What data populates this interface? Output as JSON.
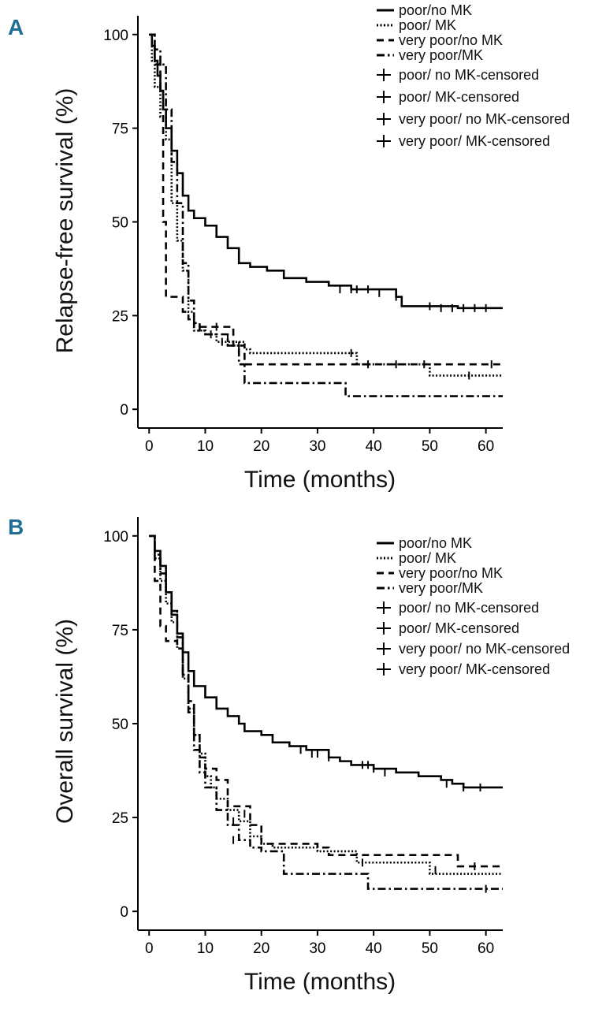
{
  "chart_data": [
    {
      "type": "line",
      "panel_label": "A",
      "xlabel": "Time (months)",
      "ylabel": "Relapse-free survival (%)",
      "xlim": [
        -2,
        63
      ],
      "ylim": [
        -5,
        105
      ],
      "xticks": [
        0,
        10,
        20,
        30,
        40,
        50,
        60
      ],
      "yticks": [
        0,
        25,
        50,
        75,
        100
      ],
      "legend_position": "top-right",
      "legend": [
        "poor/no MK",
        "poor/ MK",
        "very poor/no MK",
        "very poor/MK",
        "poor/ no MK-censored",
        "poor/ MK-censored",
        "very poor/ no MK-censored",
        "very poor/ MK-censored"
      ],
      "series": [
        {
          "name": "poor/no MK",
          "style": "solid",
          "points": [
            [
              0,
              100
            ],
            [
              0.5,
              97
            ],
            [
              1,
              93
            ],
            [
              1.5,
              89
            ],
            [
              2,
              85
            ],
            [
              2.5,
              80
            ],
            [
              3,
              75
            ],
            [
              4,
              69
            ],
            [
              5,
              63
            ],
            [
              6,
              57
            ],
            [
              7,
              53
            ],
            [
              8,
              51
            ],
            [
              10,
              49
            ],
            [
              12,
              46
            ],
            [
              14,
              43
            ],
            [
              16,
              39
            ],
            [
              18,
              38
            ],
            [
              21,
              37
            ],
            [
              24,
              35
            ],
            [
              28,
              34
            ],
            [
              32,
              33
            ],
            [
              36,
              32
            ],
            [
              40,
              32
            ],
            [
              44,
              30
            ],
            [
              45,
              27.5
            ],
            [
              50,
              27.5
            ],
            [
              55,
              27
            ],
            [
              63,
              27
            ]
          ],
          "censored": [
            [
              34,
              32
            ],
            [
              36,
              32
            ],
            [
              37,
              32
            ],
            [
              39,
              32
            ],
            [
              41,
              31
            ],
            [
              44,
              30
            ],
            [
              50,
              27.5
            ],
            [
              52,
              27
            ],
            [
              54,
              27
            ],
            [
              56,
              27
            ],
            [
              58,
              27
            ],
            [
              60,
              27
            ]
          ]
        },
        {
          "name": "poor/ MK",
          "style": "dotted",
          "points": [
            [
              0,
              100
            ],
            [
              0.5,
              93
            ],
            [
              1,
              86
            ],
            [
              2,
              78
            ],
            [
              3,
              72
            ],
            [
              4,
              55
            ],
            [
              5,
              45
            ],
            [
              6,
              37
            ],
            [
              7,
              26
            ],
            [
              8,
              21
            ],
            [
              10,
              20
            ],
            [
              12,
              18
            ],
            [
              14,
              18
            ],
            [
              17,
              16
            ],
            [
              18,
              15
            ],
            [
              20,
              15
            ],
            [
              37,
              15
            ],
            [
              37,
              12
            ],
            [
              49,
              12
            ],
            [
              50,
              9
            ],
            [
              63,
              9
            ]
          ],
          "censored": [
            [
              11,
              20
            ],
            [
              13,
              18
            ],
            [
              36,
              15
            ],
            [
              39,
              12
            ],
            [
              44,
              12
            ],
            [
              57,
              9
            ]
          ]
        },
        {
          "name": "very poor/no MK",
          "style": "dashed",
          "points": [
            [
              0,
              100
            ],
            [
              1,
              92
            ],
            [
              2,
              85
            ],
            [
              2.5,
              50
            ],
            [
              3,
              30
            ],
            [
              4,
              30
            ],
            [
              5,
              30
            ],
            [
              6,
              26
            ],
            [
              7,
              24
            ],
            [
              8,
              22
            ],
            [
              9,
              22
            ],
            [
              13,
              22
            ],
            [
              15,
              17
            ],
            [
              17,
              15
            ],
            [
              17,
              12
            ],
            [
              37,
              12
            ],
            [
              50,
              12
            ],
            [
              63,
              12
            ]
          ],
          "censored": [
            [
              12,
              22
            ],
            [
              14,
              19
            ],
            [
              16,
              17
            ],
            [
              49,
              12
            ],
            [
              61,
              12
            ]
          ]
        },
        {
          "name": "very poor/MK",
          "style": "dashdot",
          "points": [
            [
              0,
              100
            ],
            [
              1,
              96
            ],
            [
              2,
              92
            ],
            [
              3,
              80
            ],
            [
              4,
              66
            ],
            [
              5,
              55
            ],
            [
              6,
              39
            ],
            [
              7,
              29
            ],
            [
              8,
              23
            ],
            [
              9,
              21
            ],
            [
              10,
              20
            ],
            [
              14,
              17
            ],
            [
              16,
              12
            ],
            [
              17,
              7
            ],
            [
              20,
              7
            ],
            [
              34,
              7
            ],
            [
              35,
              3.5
            ],
            [
              63,
              3.5
            ]
          ],
          "censored": []
        }
      ]
    },
    {
      "type": "line",
      "panel_label": "B",
      "xlabel": "Time (months)",
      "ylabel": "Overall survival (%)",
      "xlim": [
        -2,
        63
      ],
      "ylim": [
        -5,
        105
      ],
      "xticks": [
        0,
        10,
        20,
        30,
        40,
        50,
        60
      ],
      "yticks": [
        0,
        25,
        50,
        75,
        100
      ],
      "legend_position": "top-right",
      "legend": [
        "poor/no MK",
        "poor/ MK",
        "very poor/no MK",
        "very poor/MK",
        "poor/ no MK-censored",
        "poor/ MK-censored",
        "very poor/ no MK-censored",
        "very poor/ MK-censored"
      ],
      "series": [
        {
          "name": "poor/no MK",
          "style": "solid",
          "points": [
            [
              0,
              100
            ],
            [
              1,
              96
            ],
            [
              2,
              92
            ],
            [
              3,
              85
            ],
            [
              4,
              79
            ],
            [
              5,
              74
            ],
            [
              6,
              69
            ],
            [
              7,
              64
            ],
            [
              8,
              60
            ],
            [
              10,
              57
            ],
            [
              12,
              54
            ],
            [
              14,
              52
            ],
            [
              16,
              50
            ],
            [
              17,
              48
            ],
            [
              20,
              47
            ],
            [
              22,
              45
            ],
            [
              25,
              44
            ],
            [
              28,
              43
            ],
            [
              32,
              41
            ],
            [
              34,
              40
            ],
            [
              36,
              39
            ],
            [
              40,
              38
            ],
            [
              44,
              37
            ],
            [
              48,
              36
            ],
            [
              52,
              35
            ],
            [
              54,
              34
            ],
            [
              56,
              33
            ],
            [
              63,
              33
            ]
          ],
          "censored": [
            [
              27,
              43
            ],
            [
              29,
              42
            ],
            [
              30,
              42
            ],
            [
              32,
              41
            ],
            [
              38,
              39
            ],
            [
              39,
              39
            ],
            [
              40,
              38
            ],
            [
              42,
              37
            ],
            [
              53,
              34
            ],
            [
              56,
              33
            ],
            [
              59,
              33
            ]
          ]
        },
        {
          "name": "poor/ MK",
          "style": "dotted",
          "points": [
            [
              0,
              100
            ],
            [
              1,
              94
            ],
            [
              2,
              88
            ],
            [
              3,
              82
            ],
            [
              4,
              77
            ],
            [
              5,
              70
            ],
            [
              6,
              62
            ],
            [
              7,
              54
            ],
            [
              8,
              47
            ],
            [
              9,
              42
            ],
            [
              10,
              36
            ],
            [
              11,
              33
            ],
            [
              12,
              30
            ],
            [
              14,
              27
            ],
            [
              16,
              24
            ],
            [
              18,
              20
            ],
            [
              20,
              18
            ],
            [
              22,
              17
            ],
            [
              26,
              17
            ],
            [
              30,
              16
            ],
            [
              36,
              16
            ],
            [
              37,
              13
            ],
            [
              48,
              13
            ],
            [
              50,
              10
            ],
            [
              63,
              10
            ]
          ],
          "censored": [
            [
              15,
              24
            ],
            [
              38,
              13
            ],
            [
              51,
              11
            ]
          ]
        },
        {
          "name": "very poor/no MK",
          "style": "dashed",
          "points": [
            [
              0,
              100
            ],
            [
              1,
              88
            ],
            [
              2,
              76
            ],
            [
              3,
              72
            ],
            [
              4,
              72
            ],
            [
              5,
              70
            ],
            [
              6,
              63
            ],
            [
              7,
              56
            ],
            [
              8,
              47
            ],
            [
              9,
              41
            ],
            [
              10,
              38
            ],
            [
              12,
              35
            ],
            [
              14,
              35
            ],
            [
              14,
              28
            ],
            [
              16,
              28
            ],
            [
              18,
              23
            ],
            [
              20,
              18
            ],
            [
              24,
              18
            ],
            [
              30,
              17
            ],
            [
              32,
              15
            ],
            [
              40,
              15
            ],
            [
              55,
              12
            ],
            [
              63,
              12
            ]
          ],
          "censored": [
            [
              17,
              26
            ],
            [
              58,
              12
            ]
          ]
        },
        {
          "name": "very poor/MK",
          "style": "dashdot",
          "points": [
            [
              0,
              100
            ],
            [
              1,
              95
            ],
            [
              2,
              90
            ],
            [
              3,
              85
            ],
            [
              4,
              80
            ],
            [
              5,
              73
            ],
            [
              6,
              63
            ],
            [
              7,
              53
            ],
            [
              8,
              43
            ],
            [
              9,
              37
            ],
            [
              10,
              33
            ],
            [
              12,
              27
            ],
            [
              14,
              23
            ],
            [
              16,
              19
            ],
            [
              18,
              17
            ],
            [
              20,
              16
            ],
            [
              23,
              16
            ],
            [
              24,
              10
            ],
            [
              38,
              10
            ],
            [
              39,
              6
            ],
            [
              63,
              6
            ]
          ],
          "censored": [
            [
              15,
              19
            ],
            [
              60,
              6
            ]
          ]
        }
      ]
    }
  ]
}
